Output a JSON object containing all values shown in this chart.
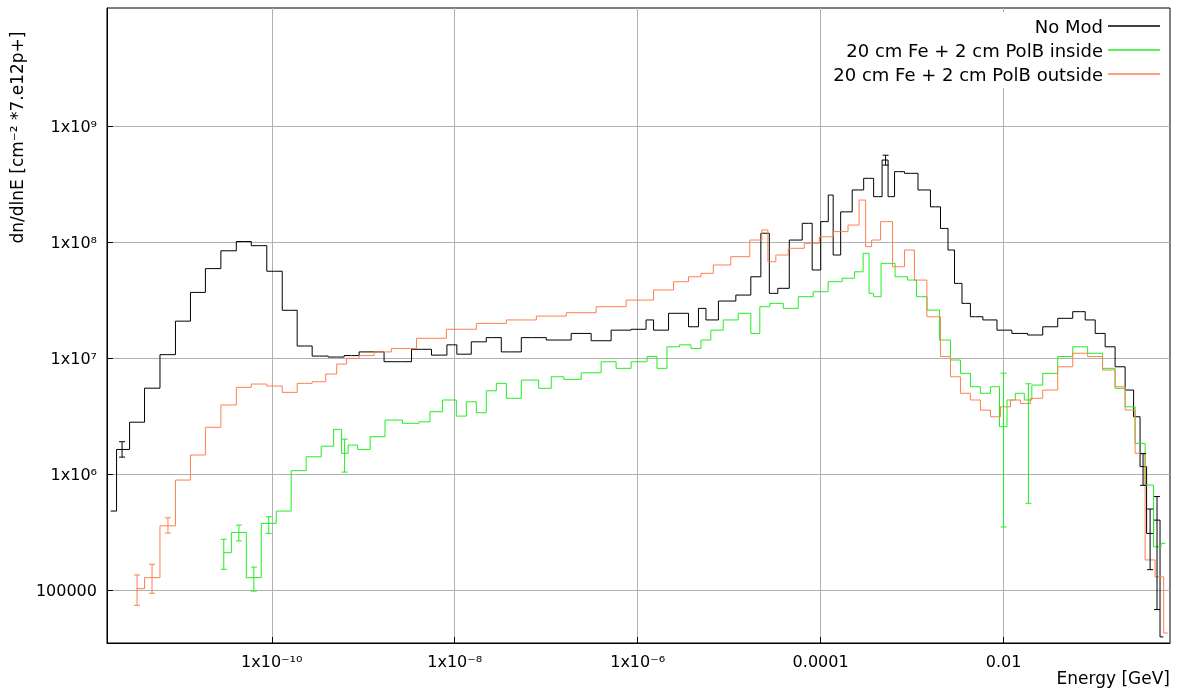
{
  "chart_data": {
    "type": "step",
    "xlabel": "Energy [GeV]",
    "ylabel": "dn/dlnE [cm⁻² *7.e12p+]",
    "log": "xy",
    "grid": true,
    "legend": "top right",
    "marker": "none",
    "line_style": "solid",
    "xlim": [
      1.58e-12,
      0.66
    ],
    "xticks": [
      {
        "value": 1e-10,
        "label": "1x10⁻¹⁰"
      },
      {
        "value": 1e-08,
        "label": "1x10⁻⁸"
      },
      {
        "value": 1e-06,
        "label": "1x10⁻⁶"
      },
      0.0001,
      0.01
    ],
    "ylim": [
      35000.0,
      10400000000.0
    ],
    "yticks": [
      100000,
      {
        "value": 1000000.0,
        "label": "1x10⁶"
      },
      {
        "value": 10000000.0,
        "label": "1x10⁷"
      },
      {
        "value": 100000000.0,
        "label": "1x10⁸"
      },
      {
        "value": 1000000000.0,
        "label": "1x10⁹"
      }
    ],
    "series": [
      {
        "name": "No Mod",
        "color": "#000000",
        "x": [
          1.75e-12,
          2.31e-12,
          3.37e-12,
          4.91e-12,
          7.33e-12,
          1.07e-11,
          1.56e-11,
          2.27e-11,
          3.4e-11,
          4.94e-11,
          7.21e-11,
          1.08e-10,
          1.57e-10,
          2.29e-10,
          3.34e-10,
          5.12e-10,
          7.46e-10,
          1.09e-09,
          2.62e-09,
          4.34e-09,
          7.16e-09,
          9.44e-09,
          1.18e-08,
          1.95e-08,
          2.51e-08,
          4.16e-08,
          6.87e-08,
          1.46e-07,
          2.41e-07,
          3.99e-07,
          6.59e-07,
          1.09e-06,
          1.4e-06,
          1.59e-06,
          2.98e-06,
          4.34e-06,
          4.92e-06,
          6.33e-06,
          9.22e-06,
          1.52e-05,
          1.96e-05,
          2.52e-05,
          3e-05,
          3.86e-05,
          5.35e-05,
          7.41e-05,
          8.83e-05,
          0.000114,
          0.000129,
          0.000146,
          0.000188,
          0.000261,
          0.000335,
          0.000431,
          0.000513,
          0.000582,
          0.000711,
          0.000962,
          0.0014,
          0.0018,
          0.00232,
          0.00263,
          0.00322,
          0.00383,
          0.00492,
          0.00718,
          0.01,
          0.0152,
          0.0222,
          0.0324,
          0.0472,
          0.0689,
          0.0885,
          0.114,
          0.146,
          0.188,
          0.242,
          0.288,
          0.335,
          0.4,
          0.476,
          0.554
        ],
        "values": [
          480000.0,
          1630000.0,
          2800000.0,
          5500000.0,
          10700000.0,
          20800000.0,
          36800000.0,
          59000000.0,
          84000000.0,
          101000000.0,
          93000000.0,
          56000000.0,
          25800000.0,
          12700000.0,
          10400000.0,
          10200000.0,
          10500000.0,
          11300000.0,
          9300000.0,
          11900000.0,
          10600000.0,
          13000000.0,
          10800000.0,
          13800000.0,
          15000000.0,
          11300000.0,
          15000000.0,
          14300000.0,
          16300000.0,
          14100000.0,
          17400000.0,
          17700000.0,
          21300000.0,
          17400000.0,
          24300000.0,
          18600000.0,
          26800000.0,
          21300000.0,
          31000000.0,
          34900000.0,
          50200000.0,
          119000000.0,
          36100000.0,
          39900000.0,
          104000000.0,
          145000000.0,
          57400000.0,
          150000000.0,
          254000000.0,
          77300000.0,
          182000000.0,
          281000000.0,
          354000000.0,
          246000000.0,
          509000000.0,
          246000000.0,
          404000000.0,
          391000000.0,
          281000000.0,
          201000000.0,
          131000000.0,
          85300000.0,
          44000000.0,
          29600000.0,
          22700000.0,
          21300000.0,
          17400000.0,
          16300000.0,
          15800000.0,
          18600000.0,
          22000000.0,
          25100000.0,
          21300000.0,
          16300000.0,
          12500000.0,
          8410000.0,
          5300000.0,
          3120000.0,
          1160000.0,
          308000.0,
          401000.0,
          39500.0
        ],
        "errors": [
          null,
          [
            1400000.0,
            1900000.0
          ],
          null,
          null,
          null,
          null,
          null,
          null,
          null,
          null,
          null,
          null,
          null,
          null,
          null,
          null,
          null,
          null,
          null,
          null,
          null,
          null,
          null,
          null,
          null,
          null,
          null,
          null,
          null,
          null,
          null,
          null,
          null,
          null,
          null,
          null,
          null,
          null,
          null,
          null,
          null,
          null,
          null,
          null,
          null,
          null,
          null,
          null,
          null,
          null,
          null,
          null,
          null,
          null,
          [
            460000000.0,
            560000000.0
          ],
          null,
          null,
          null,
          null,
          null,
          null,
          null,
          null,
          null,
          null,
          null,
          null,
          null,
          null,
          null,
          null,
          null,
          null,
          null,
          null,
          null,
          null,
          null,
          [
            800000.0,
            1500000.0
          ],
          [
            150000.0,
            500000.0
          ],
          [
            68000.0,
            640000.0
          ],
          null
        ]
      },
      {
        "name": "20 cm Fe + 2 cm PolB inside",
        "color": "#22ee22",
        "x": [
          2.99e-11,
          4.37e-11,
          6.37e-11,
          9.27e-11,
          1.35e-10,
          1.97e-10,
          2.87e-10,
          4.19e-10,
          5.38e-10,
          6.26e-10,
          7.46e-10,
          1.01e-09,
          1.4e-09,
          2.14e-09,
          3.37e-09,
          4.91e-09,
          5.86e-09,
          9.2e-09,
          1.18e-08,
          1.52e-08,
          1.95e-08,
          2.51e-08,
          3.24e-08,
          4.16e-08,
          6.87e-08,
          1e-07,
          1.29e-07,
          1.88e-07,
          3.1e-07,
          5.13e-07,
          6.59e-07,
          1.09e-06,
          1.47e-06,
          1.8e-06,
          2.43e-06,
          3.37e-06,
          4.34e-06,
          5.57e-06,
          7.15e-06,
          1.04e-05,
          1.52e-05,
          1.96e-05,
          2.39e-05,
          3.24e-05,
          4.72e-05,
          6.87e-05,
          0.0001,
          0.000146,
          0.000202,
          0.000274,
          0.00031,
          0.00037,
          0.000389,
          0.00054,
          0.000787,
          0.00101,
          0.00124,
          0.00171,
          0.00232,
          0.00298,
          0.00383,
          0.00492,
          0.00634,
          0.00815,
          0.01,
          0.0119,
          0.0152,
          0.0187,
          0.0222,
          0.0324,
          0.0472,
          0.0689,
          0.1,
          0.146,
          0.188,
          0.242,
          0.311,
          0.4,
          0.476,
          0.583
        ],
        "values": [
          210000.0,
          314000.0,
          128000.0,
          376000.0,
          480000.0,
          1070000.0,
          1410000.0,
          1740000.0,
          2430000.0,
          1510000.0,
          1780000.0,
          1630000.0,
          2100000.0,
          2920000.0,
          2740000.0,
          2820000.0,
          3450000.0,
          4350000.0,
          3160000.0,
          4200000.0,
          3380000.0,
          5220000.0,
          6050000.0,
          4500000.0,
          6460000.0,
          5480000.0,
          6900000.0,
          6550000.0,
          7460000.0,
          9290000.0,
          8150000.0,
          9290000.0,
          10300000.0,
          8150000.0,
          12500000.0,
          13000000.0,
          12100000.0,
          14300000.0,
          17400000.0,
          21300000.0,
          24300000.0,
          16300000.0,
          27700000.0,
          29600000.0,
          26800000.0,
          33800000.0,
          37300000.0,
          45500000.0,
          48700000.0,
          55400000.0,
          80000000.0,
          36100000.0,
          33800000.0,
          65500000.0,
          50200000.0,
          47000000.0,
          33800000.0,
          25900000.0,
          14300000.0,
          9620000.0,
          7380000.0,
          5660000.0,
          4970000.0,
          5660000.0,
          2560000.0,
          4350000.0,
          4970000.0,
          4350000.0,
          5850000.0,
          7380000.0,
          10300000.0,
          12500000.0,
          11000000.0,
          8150000.0,
          5480000.0,
          3800000.0,
          1840000.0,
          804000.0,
          236000.0,
          253000.0
        ],
        "errors": [
          [
            151000.0,
            274000.0
          ],
          [
            265000.0,
            363000.0
          ],
          [
            98000.0,
            158000.0
          ],
          [
            308000.0,
            429000.0
          ],
          null,
          null,
          null,
          null,
          null,
          [
            1040000.0,
            2000000.0
          ],
          null,
          null,
          null,
          null,
          null,
          null,
          null,
          null,
          null,
          null,
          null,
          null,
          null,
          null,
          null,
          null,
          null,
          null,
          null,
          null,
          null,
          null,
          null,
          null,
          null,
          null,
          null,
          null,
          null,
          null,
          null,
          null,
          null,
          null,
          null,
          null,
          null,
          null,
          null,
          null,
          null,
          null,
          null,
          null,
          null,
          null,
          null,
          null,
          null,
          null,
          null,
          null,
          null,
          null,
          [
            350000.0,
            7400000.0
          ],
          null,
          null,
          [
            560000.0,
            6000000.0
          ],
          null,
          null,
          null,
          null,
          null,
          null,
          null,
          null,
          null,
          null,
          null,
          null
        ]
      },
      {
        "name": "20 cm Fe + 2 cm PolB outside",
        "color": "#ff7f50",
        "x": [
          3.37e-12,
          4.91e-12,
          7.33e-12,
          1.07e-11,
          1.56e-11,
          2.27e-11,
          3.4e-11,
          4.94e-11,
          7.21e-11,
          1.08e-10,
          1.57e-10,
          2.29e-10,
          3.34e-10,
          4.52e-10,
          5.81e-10,
          7.46e-10,
          1.09e-09,
          1.58e-09,
          2.62e-09,
          5.57e-09,
          1.18e-08,
          2.51e-08,
          5.35e-08,
          1.14e-07,
          2.41e-07,
          5.13e-07,
          1.09e-06,
          2.04e-06,
          2.98e-06,
          4.34e-06,
          5.57e-06,
          8.11e-06,
          1.34e-05,
          2.11e-05,
          2.46e-05,
          2.86e-05,
          3.67e-05,
          5.35e-05,
          8.2e-05,
          0.000114,
          0.000165,
          0.000241,
          0.000288,
          0.000335,
          0.000389,
          0.000526,
          0.000711,
          0.000962,
          0.00117,
          0.0018,
          0.00232,
          0.00298,
          0.00383,
          0.00492,
          0.00634,
          0.00815,
          0.0105,
          0.0135,
          0.0173,
          0.0222,
          0.0324,
          0.0472,
          0.0689,
          0.1,
          0.146,
          0.188,
          0.242,
          0.311,
          0.4,
          0.514,
          0.616
        ],
        "values": [
          103000.0,
          128000.0,
          358000.0,
          888000.0,
          1460000.0,
          2530000.0,
          3940000.0,
          5590000.0,
          5970000.0,
          5740000.0,
          5060000.0,
          6050000.0,
          6250000.0,
          7280000.0,
          8870000.0,
          9940000.0,
          10500000.0,
          11300000.0,
          12100000.0,
          14800000.0,
          17700000.0,
          19900000.0,
          21300000.0,
          23000000.0,
          24600000.0,
          27700000.0,
          31600000.0,
          38600000.0,
          45500000.0,
          50200000.0,
          53700000.0,
          63400000.0,
          74800000.0,
          104000000.0,
          127000000.0,
          67600000.0,
          77300000.0,
          88300000.0,
          97500000.0,
          111000000.0,
          123000000.0,
          140000000.0,
          230000000.0,
          91200000.0,
          104000000.0,
          150000000.0,
          61200000.0,
          85300000.0,
          47000000.0,
          22700000.0,
          10300000.0,
          6900000.0,
          4970000.0,
          4350000.0,
          3560000.0,
          3120000.0,
          3800000.0,
          4350000.0,
          4060000.0,
          4500000.0,
          5300000.0,
          8410000.0,
          11000000.0,
          10300000.0,
          7890000.0,
          5660000.0,
          3560000.0,
          1510000.0,
          182000.0,
          130000.0,
          42700.0
        ],
        "errors": [
          [
            74000.0,
            135000.0
          ],
          [
            94000.0,
            167000.0
          ],
          [
            310000.0,
            420000.0
          ],
          null,
          null,
          null,
          null,
          null,
          null,
          null,
          null,
          null,
          null,
          null,
          null,
          null,
          null,
          null,
          null,
          null,
          null,
          null,
          null,
          null,
          null,
          null,
          null,
          null,
          null,
          null,
          null,
          null,
          null,
          null,
          null,
          null,
          null,
          null,
          null,
          null,
          null,
          null,
          null,
          null,
          null,
          null,
          null,
          null,
          null,
          null,
          null,
          null,
          null,
          null,
          null,
          null,
          null,
          null,
          null,
          null,
          null,
          null,
          null,
          null,
          null,
          null,
          null,
          null,
          null,
          null,
          null
        ]
      }
    ]
  }
}
